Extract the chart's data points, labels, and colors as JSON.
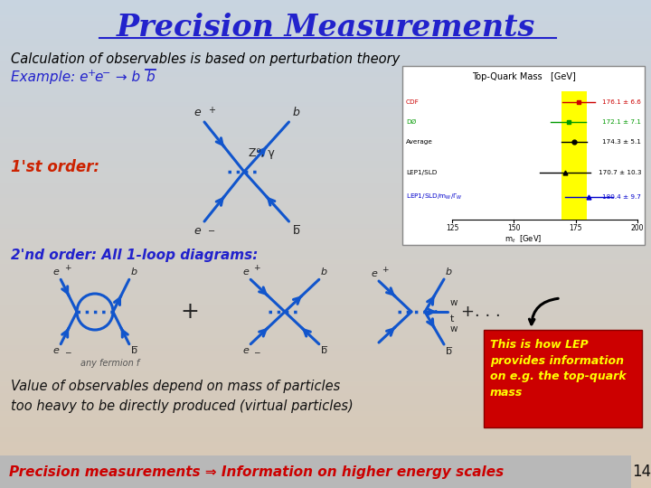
{
  "title": "Precision Measurements",
  "title_color": "#2222CC",
  "bg_gradient_top": "#C8D4E0",
  "bg_gradient_bottom": "#D8C8B4",
  "subtitle": "Calculation of observables is based on perturbation theory",
  "subtitle_color": "#000000",
  "example_color": "#2222CC",
  "first_order_color": "#CC2200",
  "second_order_color": "#2222CC",
  "diagram_color": "#1155CC",
  "red_box_bg": "#CC0000",
  "red_box_text_color": "#FFFF00",
  "red_box_text": "This is how LEP\nprovides information\non e.g. the top-quark\nmass",
  "bottom_bar_color": "#B8B8B8",
  "bottom_text_color": "#CC0000",
  "bottom_text": "Precision measurements ⇒ Information on higher energy scales",
  "page_number": "14",
  "inset_title": "Top-Quark Mass   [GeV]"
}
